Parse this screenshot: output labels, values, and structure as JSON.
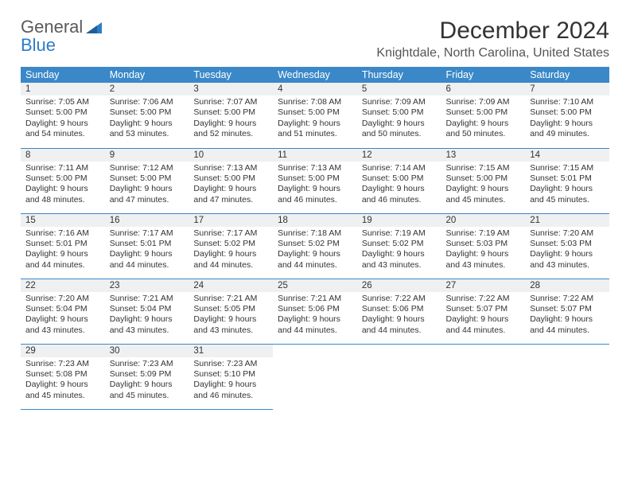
{
  "brand": {
    "top": "General",
    "bottom": "Blue",
    "triangle_color": "#2d7dc4"
  },
  "title": "December 2024",
  "location": "Knightdale, North Carolina, United States",
  "colors": {
    "header_bg": "#3a88c8",
    "header_text": "#ffffff",
    "daynum_bg": "#eef0f2",
    "cell_border": "#3a88c8",
    "text": "#333333"
  },
  "weekdays": [
    "Sunday",
    "Monday",
    "Tuesday",
    "Wednesday",
    "Thursday",
    "Friday",
    "Saturday"
  ],
  "weeks": [
    [
      {
        "n": "1",
        "sr": "7:05 AM",
        "ss": "5:00 PM",
        "dl": "9 hours and 54 minutes."
      },
      {
        "n": "2",
        "sr": "7:06 AM",
        "ss": "5:00 PM",
        "dl": "9 hours and 53 minutes."
      },
      {
        "n": "3",
        "sr": "7:07 AM",
        "ss": "5:00 PM",
        "dl": "9 hours and 52 minutes."
      },
      {
        "n": "4",
        "sr": "7:08 AM",
        "ss": "5:00 PM",
        "dl": "9 hours and 51 minutes."
      },
      {
        "n": "5",
        "sr": "7:09 AM",
        "ss": "5:00 PM",
        "dl": "9 hours and 50 minutes."
      },
      {
        "n": "6",
        "sr": "7:09 AM",
        "ss": "5:00 PM",
        "dl": "9 hours and 50 minutes."
      },
      {
        "n": "7",
        "sr": "7:10 AM",
        "ss": "5:00 PM",
        "dl": "9 hours and 49 minutes."
      }
    ],
    [
      {
        "n": "8",
        "sr": "7:11 AM",
        "ss": "5:00 PM",
        "dl": "9 hours and 48 minutes."
      },
      {
        "n": "9",
        "sr": "7:12 AM",
        "ss": "5:00 PM",
        "dl": "9 hours and 47 minutes."
      },
      {
        "n": "10",
        "sr": "7:13 AM",
        "ss": "5:00 PM",
        "dl": "9 hours and 47 minutes."
      },
      {
        "n": "11",
        "sr": "7:13 AM",
        "ss": "5:00 PM",
        "dl": "9 hours and 46 minutes."
      },
      {
        "n": "12",
        "sr": "7:14 AM",
        "ss": "5:00 PM",
        "dl": "9 hours and 46 minutes."
      },
      {
        "n": "13",
        "sr": "7:15 AM",
        "ss": "5:00 PM",
        "dl": "9 hours and 45 minutes."
      },
      {
        "n": "14",
        "sr": "7:15 AM",
        "ss": "5:01 PM",
        "dl": "9 hours and 45 minutes."
      }
    ],
    [
      {
        "n": "15",
        "sr": "7:16 AM",
        "ss": "5:01 PM",
        "dl": "9 hours and 44 minutes."
      },
      {
        "n": "16",
        "sr": "7:17 AM",
        "ss": "5:01 PM",
        "dl": "9 hours and 44 minutes."
      },
      {
        "n": "17",
        "sr": "7:17 AM",
        "ss": "5:02 PM",
        "dl": "9 hours and 44 minutes."
      },
      {
        "n": "18",
        "sr": "7:18 AM",
        "ss": "5:02 PM",
        "dl": "9 hours and 44 minutes."
      },
      {
        "n": "19",
        "sr": "7:19 AM",
        "ss": "5:02 PM",
        "dl": "9 hours and 43 minutes."
      },
      {
        "n": "20",
        "sr": "7:19 AM",
        "ss": "5:03 PM",
        "dl": "9 hours and 43 minutes."
      },
      {
        "n": "21",
        "sr": "7:20 AM",
        "ss": "5:03 PM",
        "dl": "9 hours and 43 minutes."
      }
    ],
    [
      {
        "n": "22",
        "sr": "7:20 AM",
        "ss": "5:04 PM",
        "dl": "9 hours and 43 minutes."
      },
      {
        "n": "23",
        "sr": "7:21 AM",
        "ss": "5:04 PM",
        "dl": "9 hours and 43 minutes."
      },
      {
        "n": "24",
        "sr": "7:21 AM",
        "ss": "5:05 PM",
        "dl": "9 hours and 43 minutes."
      },
      {
        "n": "25",
        "sr": "7:21 AM",
        "ss": "5:06 PM",
        "dl": "9 hours and 44 minutes."
      },
      {
        "n": "26",
        "sr": "7:22 AM",
        "ss": "5:06 PM",
        "dl": "9 hours and 44 minutes."
      },
      {
        "n": "27",
        "sr": "7:22 AM",
        "ss": "5:07 PM",
        "dl": "9 hours and 44 minutes."
      },
      {
        "n": "28",
        "sr": "7:22 AM",
        "ss": "5:07 PM",
        "dl": "9 hours and 44 minutes."
      }
    ],
    [
      {
        "n": "29",
        "sr": "7:23 AM",
        "ss": "5:08 PM",
        "dl": "9 hours and 45 minutes."
      },
      {
        "n": "30",
        "sr": "7:23 AM",
        "ss": "5:09 PM",
        "dl": "9 hours and 45 minutes."
      },
      {
        "n": "31",
        "sr": "7:23 AM",
        "ss": "5:10 PM",
        "dl": "9 hours and 46 minutes."
      },
      null,
      null,
      null,
      null
    ]
  ]
}
